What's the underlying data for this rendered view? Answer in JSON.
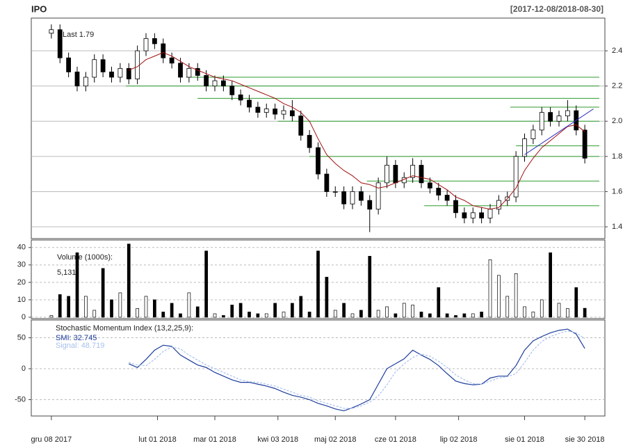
{
  "chart_data": [
    {
      "type": "candlestick",
      "title": "IPO",
      "subtitle": "[2017-12-08/2018-08-30]",
      "annotation": "Last 1.79",
      "x": [
        0,
        3,
        6,
        9,
        12,
        15,
        18,
        21,
        24,
        27,
        30,
        33,
        36,
        39,
        42,
        45,
        48,
        51,
        54,
        57,
        60,
        63,
        66,
        69,
        72,
        75,
        78,
        81,
        84,
        87,
        90,
        93,
        96,
        99,
        102,
        105,
        108,
        111,
        114,
        117,
        120,
        123,
        126,
        129,
        132,
        135,
        138,
        141,
        144,
        147,
        150,
        153,
        156,
        159,
        162,
        165,
        168,
        171,
        174,
        177,
        180,
        183,
        186
      ],
      "open": [
        2.5,
        2.52,
        2.36,
        2.28,
        2.2,
        2.25,
        2.35,
        2.28,
        2.25,
        2.3,
        2.24,
        2.4,
        2.47,
        2.44,
        2.36,
        2.33,
        2.25,
        2.3,
        2.26,
        2.2,
        2.23,
        2.2,
        2.15,
        2.12,
        2.08,
        2.05,
        2.07,
        2.04,
        2.06,
        2.03,
        1.92,
        1.85,
        1.7,
        1.6,
        1.6,
        1.53,
        1.6,
        1.55,
        1.5,
        1.65,
        1.75,
        1.65,
        1.68,
        1.75,
        1.65,
        1.62,
        1.58,
        1.55,
        1.48,
        1.45,
        1.48,
        1.45,
        1.5,
        1.55,
        1.57,
        1.8,
        1.9,
        1.95,
        2.05,
        2.0,
        2.03,
        2.06,
        1.95
      ],
      "high": [
        2.55,
        2.55,
        2.39,
        2.31,
        2.28,
        2.38,
        2.38,
        2.31,
        2.33,
        2.33,
        2.43,
        2.5,
        2.5,
        2.47,
        2.39,
        2.36,
        2.33,
        2.33,
        2.29,
        2.26,
        2.26,
        2.23,
        2.18,
        2.15,
        2.11,
        2.1,
        2.1,
        2.09,
        2.12,
        2.06,
        1.95,
        1.88,
        1.73,
        1.63,
        1.63,
        1.63,
        1.63,
        1.58,
        1.68,
        1.8,
        1.78,
        1.71,
        1.79,
        1.78,
        1.68,
        1.65,
        1.61,
        1.58,
        1.51,
        1.51,
        1.51,
        1.53,
        1.58,
        1.6,
        1.83,
        1.93,
        1.98,
        2.08,
        2.08,
        2.06,
        2.12,
        2.09,
        1.98
      ],
      "low": [
        2.47,
        2.33,
        2.25,
        2.17,
        2.17,
        2.22,
        2.25,
        2.22,
        2.22,
        2.21,
        2.21,
        2.37,
        2.41,
        2.33,
        2.3,
        2.22,
        2.22,
        2.23,
        2.17,
        2.17,
        2.17,
        2.12,
        2.09,
        2.05,
        2.02,
        2.02,
        2.01,
        2.01,
        2.0,
        1.89,
        1.82,
        1.67,
        1.57,
        1.57,
        1.5,
        1.5,
        1.52,
        1.37,
        1.47,
        1.62,
        1.62,
        1.62,
        1.65,
        1.62,
        1.59,
        1.55,
        1.52,
        1.45,
        1.42,
        1.42,
        1.42,
        1.42,
        1.47,
        1.52,
        1.54,
        1.77,
        1.87,
        1.92,
        1.97,
        1.97,
        2.0,
        1.92,
        1.76
      ],
      "close": [
        2.52,
        2.36,
        2.28,
        2.2,
        2.25,
        2.35,
        2.28,
        2.25,
        2.3,
        2.24,
        2.4,
        2.47,
        2.44,
        2.36,
        2.33,
        2.25,
        2.3,
        2.26,
        2.2,
        2.23,
        2.2,
        2.15,
        2.12,
        2.08,
        2.05,
        2.07,
        2.04,
        2.06,
        2.03,
        1.92,
        1.85,
        1.7,
        1.6,
        1.6,
        1.53,
        1.6,
        1.55,
        1.5,
        1.65,
        1.75,
        1.65,
        1.68,
        1.75,
        1.65,
        1.62,
        1.58,
        1.55,
        1.48,
        1.45,
        1.48,
        1.45,
        1.5,
        1.55,
        1.57,
        1.8,
        1.9,
        1.95,
        2.05,
        2.0,
        2.03,
        2.06,
        1.95,
        1.79
      ],
      "up_color": "#ffffff",
      "down_color": "#000000",
      "ma": {
        "color": "#a01010",
        "values": [
          null,
          null,
          null,
          null,
          null,
          null,
          null,
          null,
          null,
          2.29,
          2.31,
          2.35,
          2.37,
          2.39,
          2.37,
          2.34,
          2.31,
          2.29,
          2.27,
          2.25,
          2.24,
          2.23,
          2.21,
          2.19,
          2.17,
          2.15,
          2.13,
          2.1,
          2.08,
          2.05,
          2.0,
          1.9,
          1.81,
          1.76,
          1.72,
          1.69,
          1.65,
          1.64,
          1.62,
          1.63,
          1.65,
          1.67,
          1.69,
          1.68,
          1.67,
          1.64,
          1.61,
          1.57,
          1.55,
          1.52,
          1.51,
          1.5,
          1.51,
          1.56,
          1.62,
          1.72,
          1.79,
          1.85,
          1.89,
          1.93,
          1.97,
          1.98,
          1.94
        ]
      },
      "levels": {
        "color": "#2e9b2e",
        "items": [
          {
            "value": 2.25,
            "from": 47
          },
          {
            "value": 2.2,
            "from": 26
          },
          {
            "value": 2.13,
            "from": 51
          },
          {
            "value": 2.08,
            "from": 160
          },
          {
            "value": 2.0,
            "from": 79
          },
          {
            "value": 1.86,
            "from": 162
          },
          {
            "value": 1.8,
            "from": 90
          },
          {
            "value": 1.66,
            "from": 110
          },
          {
            "value": 1.52,
            "from": 130
          }
        ]
      },
      "trendline": {
        "color": "#3030c8",
        "x": [
          165,
          189
        ],
        "y": [
          1.81,
          2.07
        ]
      },
      "xlim": [
        -7,
        193
      ],
      "ylim": [
        1.333,
        2.586
      ],
      "yticks": [
        1.4,
        1.6,
        1.8,
        {
          "value": 2,
          "label": "2.0"
        },
        2.2,
        2.4
      ],
      "xticks": [
        {
          "value": 0,
          "label": "gru 08 2017"
        },
        {
          "value": 37,
          "label": "lut 01 2018"
        },
        {
          "value": 57,
          "label": "mar 01 2018"
        },
        {
          "value": 79,
          "label": "kwi 03 2018"
        },
        {
          "value": 99,
          "label": "maj 02 2018"
        },
        {
          "value": 120,
          "label": "cze 01 2018"
        },
        {
          "value": 142,
          "label": "lip 02 2018"
        },
        {
          "value": 165,
          "label": "sie 01 2018"
        },
        {
          "value": 186,
          "label": "sie 30 2018"
        }
      ],
      "grid": true
    },
    {
      "type": "bar",
      "title": "Volume (1000s):",
      "annotation": "5,131",
      "x": [
        0,
        3,
        6,
        9,
        12,
        15,
        18,
        21,
        24,
        27,
        30,
        33,
        36,
        39,
        42,
        45,
        48,
        51,
        54,
        57,
        60,
        63,
        66,
        69,
        72,
        75,
        78,
        81,
        84,
        87,
        90,
        93,
        96,
        99,
        102,
        105,
        108,
        111,
        114,
        117,
        120,
        123,
        126,
        129,
        132,
        135,
        138,
        141,
        144,
        147,
        150,
        153,
        156,
        159,
        162,
        165,
        168,
        171,
        174,
        177,
        180,
        183,
        186
      ],
      "values": [
        1,
        13,
        12,
        37,
        12,
        4,
        28,
        10,
        14,
        42,
        5,
        12,
        10,
        3,
        8,
        2,
        14,
        6,
        38,
        2,
        1,
        7,
        8,
        3,
        2,
        2,
        8,
        3,
        8,
        12,
        3,
        38,
        23,
        4,
        8,
        2,
        4,
        35,
        4,
        6,
        2,
        8,
        7,
        3,
        2,
        17,
        2,
        1,
        2,
        2,
        3,
        33,
        24,
        12,
        25,
        6,
        3,
        10,
        37,
        8,
        5,
        17,
        5.131
      ],
      "xlim": [
        -7,
        193
      ],
      "ylim": [
        -0.8,
        44.3
      ],
      "yticks": [
        0,
        10,
        20,
        30,
        40
      ],
      "grid": true
    },
    {
      "type": "line",
      "title": "Stochastic Momentum Index (13,2,25,9):",
      "x": [
        0,
        3,
        6,
        9,
        12,
        15,
        18,
        21,
        24,
        27,
        30,
        33,
        36,
        39,
        42,
        45,
        48,
        51,
        54,
        57,
        60,
        63,
        66,
        69,
        72,
        75,
        78,
        81,
        84,
        87,
        90,
        93,
        96,
        99,
        102,
        105,
        108,
        111,
        114,
        117,
        120,
        123,
        126,
        129,
        132,
        135,
        138,
        141,
        144,
        147,
        150,
        153,
        156,
        159,
        162,
        165,
        168,
        171,
        174,
        177,
        180,
        183,
        186
      ],
      "series": [
        {
          "name": "SMI: 32.745",
          "color": "#1c3c9c",
          "values": [
            null,
            null,
            null,
            null,
            null,
            null,
            null,
            null,
            null,
            8,
            2,
            15,
            30,
            38,
            36,
            22,
            14,
            6,
            2,
            -6,
            -12,
            -18,
            -22,
            -22,
            -25,
            -28,
            -32,
            -38,
            -43,
            -46,
            -50,
            -56,
            -60,
            -65,
            -68,
            -63,
            -57,
            -50,
            -25,
            0,
            8,
            16,
            30,
            22,
            15,
            5,
            -8,
            -20,
            -24,
            -26,
            -25,
            -15,
            -12,
            -12,
            5,
            30,
            45,
            52,
            58,
            62,
            64,
            56,
            32.745
          ]
        },
        {
          "name": "Signal: 48.719",
          "color": "#a8c0ec",
          "dashed": true,
          "values": [
            null,
            null,
            null,
            null,
            null,
            null,
            null,
            null,
            null,
            10,
            6,
            5,
            15,
            28,
            35,
            32,
            22,
            14,
            6,
            0,
            -6,
            -12,
            -18,
            -21,
            -22,
            -25,
            -28,
            -33,
            -38,
            -43,
            -46,
            -52,
            -56,
            -60,
            -64,
            -64,
            -60,
            -54,
            -44,
            -26,
            -5,
            8,
            18,
            24,
            20,
            12,
            2,
            -10,
            -18,
            -24,
            -25,
            -20,
            -15,
            -13,
            -8,
            10,
            30,
            44,
            52,
            57,
            61,
            58,
            48.719
          ]
        }
      ],
      "xlim": [
        -7,
        193
      ],
      "ylim": [
        -76.4,
        78.7
      ],
      "yticks": [
        -50,
        0,
        50
      ],
      "grid": true
    }
  ]
}
